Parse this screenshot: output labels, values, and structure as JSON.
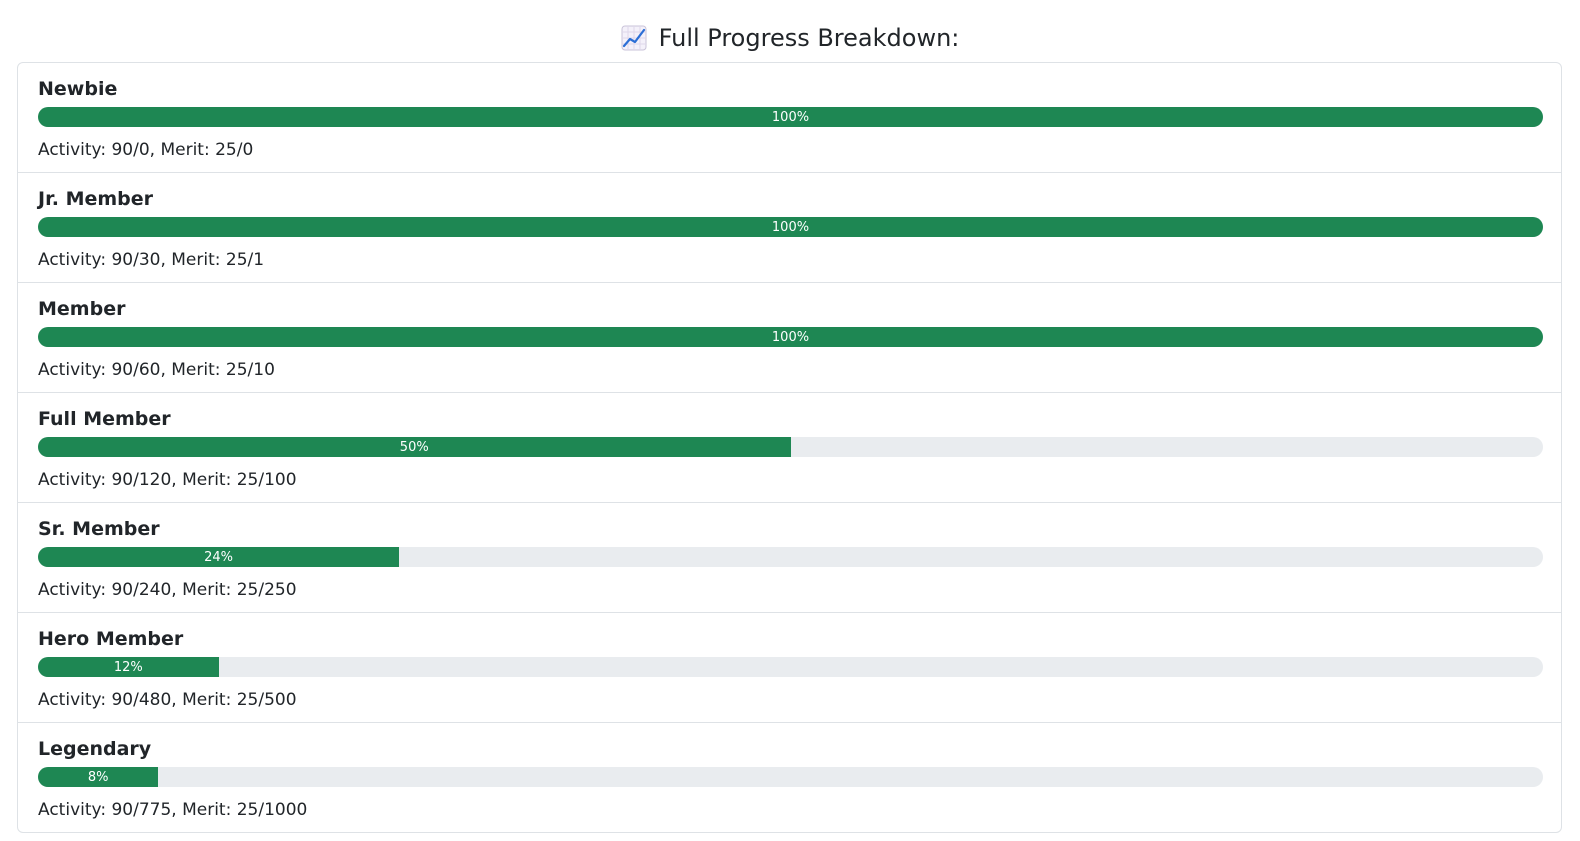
{
  "header": {
    "icon": "chart-increasing-icon",
    "title": "Full Progress Breakdown:"
  },
  "colors": {
    "fill": "#1e8753",
    "track": "#e9ecef",
    "border": "#dee2e6"
  },
  "ranks": [
    {
      "name": "Newbie",
      "progress": 100,
      "progress_label": "100%",
      "stats": "Activity: 90/0, Merit: 25/0"
    },
    {
      "name": "Jr. Member",
      "progress": 100,
      "progress_label": "100%",
      "stats": "Activity: 90/30, Merit: 25/1"
    },
    {
      "name": "Member",
      "progress": 100,
      "progress_label": "100%",
      "stats": "Activity: 90/60, Merit: 25/10"
    },
    {
      "name": "Full Member",
      "progress": 50,
      "progress_label": "50%",
      "stats": "Activity: 90/120, Merit: 25/100"
    },
    {
      "name": "Sr. Member",
      "progress": 24,
      "progress_label": "24%",
      "stats": "Activity: 90/240, Merit: 25/250"
    },
    {
      "name": "Hero Member",
      "progress": 12,
      "progress_label": "12%",
      "stats": "Activity: 90/480, Merit: 25/500"
    },
    {
      "name": "Legendary",
      "progress": 8,
      "progress_label": "8%",
      "stats": "Activity: 90/775, Merit: 25/1000"
    }
  ]
}
